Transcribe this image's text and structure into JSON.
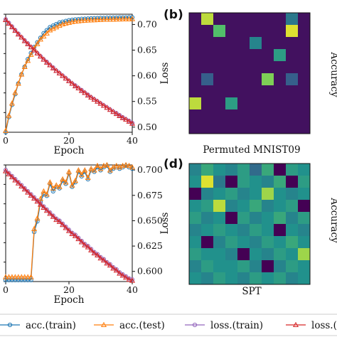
{
  "colors": {
    "acc_train": "#1f77b4",
    "acc_test": "#ff7f0e",
    "loss_train": "#9467bd",
    "loss_test": "#d62728",
    "heat_low": "#440154",
    "heat_high": "#fde725"
  },
  "panels": {
    "b": {
      "label": "(b)",
      "caption": "Permuted MNIST09",
      "right_label": "Accuracy"
    },
    "d": {
      "label": "(d)",
      "caption": "SPT",
      "right_label": "Accuracy"
    }
  },
  "legend": [
    {
      "label": "acc.(train)",
      "marker": "circle",
      "color_key": "acc_train"
    },
    {
      "label": "acc.(test)",
      "marker": "triangle",
      "color_key": "acc_test"
    },
    {
      "label": "loss.(train)",
      "marker": "circle",
      "color_key": "loss_train"
    },
    {
      "label": "loss.(test)",
      "marker": "triangle",
      "color_key": "loss_test"
    }
  ],
  "chart_data": [
    {
      "type": "line",
      "xlabel": "Epoch",
      "ylabel_right": "Loss",
      "xlim": [
        0,
        40
      ],
      "xticks": [
        0,
        20,
        40
      ],
      "ylim_right": [
        0.49,
        0.72
      ],
      "yticks_right": [
        0.5,
        0.55,
        0.6,
        0.65,
        0.7
      ],
      "ytick_labels_right": [
        "0.50",
        "0.55",
        "0.60",
        "0.65",
        "0.70"
      ],
      "acc_range": [
        0.2,
        0.975
      ],
      "x": [
        0,
        1,
        2,
        3,
        4,
        5,
        6,
        7,
        8,
        9,
        10,
        11,
        12,
        13,
        14,
        15,
        16,
        17,
        18,
        19,
        20,
        21,
        22,
        23,
        24,
        25,
        26,
        27,
        28,
        29,
        30,
        31,
        32,
        33,
        34,
        35,
        36,
        37,
        38,
        39,
        40
      ],
      "series": [
        {
          "name": "acc.(train)",
          "axis": "left",
          "color_key": "acc_train",
          "marker": "circle",
          "values": [
            0.2,
            0.3,
            0.38,
            0.45,
            0.52,
            0.58,
            0.63,
            0.68,
            0.72,
            0.76,
            0.79,
            0.82,
            0.85,
            0.87,
            0.89,
            0.9,
            0.91,
            0.92,
            0.925,
            0.93,
            0.935,
            0.938,
            0.94,
            0.942,
            0.944,
            0.945,
            0.946,
            0.947,
            0.948,
            0.949,
            0.95,
            0.95,
            0.951,
            0.951,
            0.952,
            0.952,
            0.953,
            0.953,
            0.953,
            0.954,
            0.954
          ]
        },
        {
          "name": "acc.(test)",
          "axis": "left",
          "color_key": "acc_test",
          "marker": "triangle",
          "values": [
            0.21,
            0.31,
            0.39,
            0.46,
            0.52,
            0.58,
            0.63,
            0.67,
            0.71,
            0.75,
            0.78,
            0.81,
            0.83,
            0.85,
            0.87,
            0.88,
            0.89,
            0.9,
            0.91,
            0.915,
            0.92,
            0.925,
            0.928,
            0.93,
            0.932,
            0.934,
            0.935,
            0.936,
            0.937,
            0.938,
            0.939,
            0.94,
            0.94,
            0.941,
            0.941,
            0.942,
            0.942,
            0.943,
            0.943,
            0.943,
            0.944
          ]
        },
        {
          "name": "loss.(train)",
          "axis": "right",
          "color_key": "loss_train",
          "marker": "circle",
          "values": [
            0.71,
            0.703,
            0.696,
            0.689,
            0.682,
            0.675,
            0.669,
            0.663,
            0.656,
            0.65,
            0.644,
            0.638,
            0.632,
            0.627,
            0.621,
            0.616,
            0.61,
            0.605,
            0.6,
            0.595,
            0.59,
            0.585,
            0.581,
            0.576,
            0.572,
            0.567,
            0.563,
            0.558,
            0.554,
            0.55,
            0.546,
            0.542,
            0.538,
            0.534,
            0.53,
            0.527,
            0.523,
            0.519,
            0.515,
            0.512,
            0.508
          ]
        },
        {
          "name": "loss.(test)",
          "axis": "right",
          "color_key": "loss_test",
          "marker": "triangle",
          "values": [
            0.709,
            0.702,
            0.695,
            0.688,
            0.681,
            0.675,
            0.668,
            0.662,
            0.656,
            0.65,
            0.644,
            0.638,
            0.632,
            0.626,
            0.621,
            0.615,
            0.61,
            0.605,
            0.6,
            0.595,
            0.59,
            0.585,
            0.58,
            0.576,
            0.571,
            0.567,
            0.562,
            0.558,
            0.554,
            0.55,
            0.546,
            0.542,
            0.538,
            0.534,
            0.53,
            0.526,
            0.522,
            0.518,
            0.515,
            0.511,
            0.507
          ]
        }
      ]
    },
    {
      "type": "heatmap",
      "caption": "Permuted MNIST09",
      "colormap": "viridis",
      "size": [
        10,
        10
      ],
      "matrix": [
        [
          0.05,
          0.9,
          0.05,
          0.05,
          0.05,
          0.05,
          0.05,
          0.05,
          0.4,
          0.05
        ],
        [
          0.05,
          0.05,
          0.7,
          0.05,
          0.05,
          0.05,
          0.05,
          0.05,
          0.95,
          0.05
        ],
        [
          0.05,
          0.05,
          0.05,
          0.05,
          0.05,
          0.45,
          0.05,
          0.05,
          0.05,
          0.05
        ],
        [
          0.05,
          0.05,
          0.05,
          0.05,
          0.05,
          0.05,
          0.05,
          0.55,
          0.05,
          0.05
        ],
        [
          0.05,
          0.05,
          0.05,
          0.05,
          0.05,
          0.05,
          0.05,
          0.05,
          0.05,
          0.05
        ],
        [
          0.05,
          0.3,
          0.05,
          0.05,
          0.05,
          0.05,
          0.8,
          0.05,
          0.3,
          0.05
        ],
        [
          0.05,
          0.05,
          0.05,
          0.05,
          0.05,
          0.05,
          0.05,
          0.05,
          0.05,
          0.05
        ],
        [
          0.9,
          0.05,
          0.05,
          0.55,
          0.05,
          0.05,
          0.05,
          0.05,
          0.05,
          0.05
        ],
        [
          0.05,
          0.05,
          0.05,
          0.05,
          0.05,
          0.05,
          0.05,
          0.05,
          0.05,
          0.05
        ],
        [
          0.05,
          0.05,
          0.05,
          0.05,
          0.05,
          0.05,
          0.05,
          0.05,
          0.05,
          0.05
        ]
      ]
    },
    {
      "type": "line",
      "xlabel": "Epoch",
      "ylabel_right": "Loss",
      "xlim": [
        0,
        40
      ],
      "xticks": [
        0,
        20,
        40
      ],
      "ylim_right": [
        0.59,
        0.705
      ],
      "yticks_right": [
        0.6,
        0.625,
        0.65,
        0.675,
        0.7
      ],
      "ytick_labels_right": [
        "0.600",
        "0.625",
        "0.650",
        "0.675",
        "0.700"
      ],
      "acc_range": [
        0.2,
        0.975
      ],
      "x": [
        0,
        1,
        2,
        3,
        4,
        5,
        6,
        7,
        8,
        9,
        10,
        11,
        12,
        13,
        14,
        15,
        16,
        17,
        18,
        19,
        20,
        21,
        22,
        23,
        24,
        25,
        26,
        27,
        28,
        29,
        30,
        31,
        32,
        33,
        34,
        35,
        36,
        37,
        38,
        39,
        40
      ],
      "series": [
        {
          "name": "acc.(train)",
          "axis": "left",
          "color_key": "acc_train",
          "marker": "circle",
          "values": [
            0.21,
            0.21,
            0.21,
            0.21,
            0.21,
            0.21,
            0.21,
            0.21,
            0.21,
            0.53,
            0.6,
            0.73,
            0.78,
            0.77,
            0.85,
            0.8,
            0.83,
            0.82,
            0.87,
            0.85,
            0.92,
            0.83,
            0.86,
            0.93,
            0.9,
            0.93,
            0.88,
            0.94,
            0.93,
            0.96,
            0.94,
            0.96,
            0.97,
            0.93,
            0.95,
            0.96,
            0.95,
            0.96,
            0.97,
            0.96,
            0.95
          ]
        },
        {
          "name": "acc.(test)",
          "axis": "left",
          "color_key": "acc_test",
          "marker": "triangle",
          "values": [
            0.23,
            0.23,
            0.23,
            0.23,
            0.23,
            0.23,
            0.23,
            0.23,
            0.23,
            0.55,
            0.62,
            0.75,
            0.8,
            0.78,
            0.86,
            0.82,
            0.84,
            0.83,
            0.88,
            0.86,
            0.93,
            0.84,
            0.87,
            0.94,
            0.91,
            0.94,
            0.89,
            0.95,
            0.94,
            0.97,
            0.95,
            0.97,
            0.975,
            0.94,
            0.96,
            0.97,
            0.96,
            0.97,
            0.975,
            0.97,
            0.96
          ]
        },
        {
          "name": "loss.(train)",
          "axis": "right",
          "color_key": "loss_train",
          "marker": "circle",
          "values": [
            0.7,
            0.697,
            0.694,
            0.691,
            0.688,
            0.685,
            0.682,
            0.679,
            0.676,
            0.673,
            0.67,
            0.667,
            0.664,
            0.661,
            0.658,
            0.655,
            0.652,
            0.65,
            0.647,
            0.644,
            0.641,
            0.638,
            0.636,
            0.633,
            0.63,
            0.627,
            0.625,
            0.622,
            0.619,
            0.617,
            0.614,
            0.612,
            0.609,
            0.607,
            0.604,
            0.602,
            0.599,
            0.597,
            0.595,
            0.593,
            0.592
          ]
        },
        {
          "name": "loss.(test)",
          "axis": "right",
          "color_key": "loss_test",
          "marker": "triangle",
          "values": [
            0.699,
            0.696,
            0.693,
            0.69,
            0.687,
            0.684,
            0.681,
            0.678,
            0.675,
            0.672,
            0.669,
            0.666,
            0.663,
            0.66,
            0.657,
            0.654,
            0.651,
            0.649,
            0.646,
            0.643,
            0.64,
            0.637,
            0.635,
            0.632,
            0.629,
            0.626,
            0.624,
            0.621,
            0.618,
            0.616,
            0.613,
            0.611,
            0.608,
            0.606,
            0.603,
            0.601,
            0.598,
            0.596,
            0.594,
            0.592,
            0.591
          ]
        }
      ]
    },
    {
      "type": "heatmap",
      "caption": "SPT",
      "colormap": "viridis",
      "size": [
        10,
        10
      ],
      "matrix": [
        [
          0.45,
          0.6,
          0.5,
          0.45,
          0.55,
          0.35,
          0.6,
          0.0,
          0.55,
          0.5
        ],
        [
          0.5,
          0.95,
          0.4,
          0.0,
          0.55,
          0.5,
          0.45,
          0.6,
          0.0,
          0.55
        ],
        [
          0.0,
          0.45,
          0.5,
          0.55,
          0.45,
          0.5,
          0.85,
          0.5,
          0.45,
          0.5
        ],
        [
          0.5,
          0.55,
          0.9,
          0.45,
          0.5,
          0.6,
          0.45,
          0.5,
          0.55,
          0.0
        ],
        [
          0.55,
          0.45,
          0.5,
          0.0,
          0.55,
          0.45,
          0.5,
          0.6,
          0.45,
          0.55
        ],
        [
          0.45,
          0.5,
          0.55,
          0.5,
          0.45,
          0.55,
          0.5,
          0.0,
          0.5,
          0.45
        ],
        [
          0.5,
          0.0,
          0.45,
          0.55,
          0.5,
          0.45,
          0.55,
          0.5,
          0.6,
          0.5
        ],
        [
          0.55,
          0.5,
          0.5,
          0.45,
          0.0,
          0.5,
          0.45,
          0.55,
          0.5,
          0.85
        ],
        [
          0.45,
          0.55,
          0.5,
          0.5,
          0.55,
          0.45,
          0.0,
          0.45,
          0.55,
          0.5
        ],
        [
          0.5,
          0.45,
          0.55,
          0.5,
          0.45,
          0.55,
          0.5,
          0.55,
          0.45,
          0.5
        ]
      ]
    }
  ]
}
